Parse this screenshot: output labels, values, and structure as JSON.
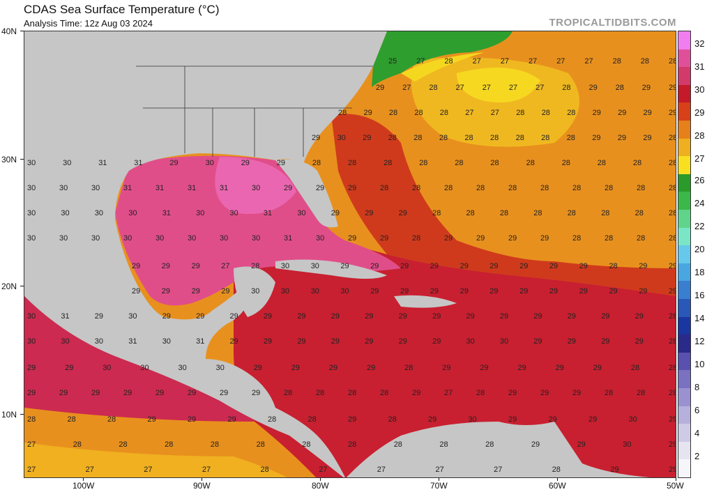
{
  "header": {
    "title": "CDAS Sea Surface Temperature (°C)",
    "analysis_time": "Analysis Time: 12z Aug 03 2024",
    "brand": "TROPICALTIDBITS.COM"
  },
  "axes": {
    "lat_labels": [
      "40N",
      "30N",
      "20N",
      "10N"
    ],
    "lon_labels": [
      "100W",
      "90W",
      "80W",
      "70W",
      "60W",
      "50W"
    ]
  },
  "colorbar": {
    "labels": [
      "32",
      "31",
      "30",
      "29",
      "28",
      "27",
      "26",
      "24",
      "22",
      "20",
      "18",
      "16",
      "14",
      "12",
      "10",
      "8",
      "6",
      "4",
      "2"
    ],
    "colors": [
      "#f07ef0",
      "#e0509a",
      "#d23a6a",
      "#c41a2a",
      "#d8401a",
      "#e6801a",
      "#eeb020",
      "#f8e020",
      "#2a9a2a",
      "#3cb84a",
      "#60d48a",
      "#7ae6c6",
      "#66c8ea",
      "#4aa6e0",
      "#3a7ed0",
      "#2a58b8",
      "#1a36a0",
      "#2a2a8a",
      "#5a50b0",
      "#7a72c0",
      "#9a92d0",
      "#b6b0dc",
      "#cfcbe6",
      "#e6e4f0",
      "#f6f6fa"
    ]
  },
  "map": {
    "land_color": "#c6c6c6",
    "border_color": "#222222",
    "gulf_color": "#e04e8a",
    "caribbean_color": "#c82030",
    "atlantic_color": "#e8901e",
    "warm_core_color": "#f4b81c",
    "cool_color": "#2e9e2e",
    "value_grid": [
      [
        "25",
        "27",
        "28",
        "27",
        "27",
        "27",
        "27",
        "27",
        "28",
        "28",
        "28"
      ],
      [
        "29",
        "27",
        "28",
        "27",
        "27",
        "27",
        "27",
        "28",
        "29",
        "28",
        "29",
        "29"
      ],
      [
        "28",
        "29",
        "28",
        "28",
        "28",
        "27",
        "27",
        "28",
        "28",
        "28",
        "29",
        "29",
        "29",
        "29"
      ],
      [
        "29",
        "30",
        "29",
        "28",
        "28",
        "28",
        "28",
        "28",
        "28",
        "28",
        "28",
        "29",
        "29",
        "29",
        "28"
      ],
      [
        "30",
        "30",
        "31",
        "31",
        "29",
        "30",
        "29",
        "29",
        "28",
        "28",
        "28",
        "28",
        "28",
        "28",
        "28",
        "28",
        "28",
        "28",
        "28"
      ],
      [
        "30",
        "30",
        "30",
        "31",
        "31",
        "31",
        "31",
        "30",
        "29",
        "29",
        "29",
        "28",
        "28",
        "28",
        "28",
        "28",
        "28",
        "28",
        "28",
        "28",
        "28"
      ],
      [
        "30",
        "30",
        "30",
        "30",
        "31",
        "30",
        "30",
        "31",
        "30",
        "29",
        "29",
        "29",
        "28",
        "28",
        "28",
        "28",
        "28",
        "28",
        "28",
        "28"
      ],
      [
        "30",
        "30",
        "30",
        "30",
        "30",
        "30",
        "30",
        "30",
        "31",
        "30",
        "29",
        "29",
        "28",
        "29",
        "29",
        "29",
        "29",
        "28",
        "28",
        "28",
        "28"
      ],
      [
        "29",
        "29",
        "29",
        "27",
        "28",
        "30",
        "30",
        "29",
        "29",
        "29",
        "29",
        "29",
        "29",
        "29",
        "29",
        "29",
        "28",
        "29",
        "29"
      ],
      [
        "29",
        "29",
        "29",
        "29",
        "30",
        "30",
        "30",
        "30",
        "29",
        "29",
        "29",
        "29",
        "29",
        "29",
        "29",
        "29",
        "29",
        "29",
        "29"
      ],
      [
        "30",
        "31",
        "29",
        "30",
        "29",
        "29",
        "29",
        "29",
        "29",
        "29",
        "29",
        "29",
        "29",
        "29",
        "29",
        "29",
        "29",
        "29",
        "29",
        "28"
      ],
      [
        "30",
        "30",
        "30",
        "31",
        "30",
        "31",
        "29",
        "29",
        "29",
        "29",
        "29",
        "29",
        "29",
        "30",
        "30",
        "29",
        "29",
        "29",
        "29",
        "28"
      ],
      [
        "29",
        "29",
        "30",
        "30",
        "30",
        "30",
        "29",
        "29",
        "29",
        "29",
        "28",
        "29",
        "29",
        "29",
        "29",
        "29",
        "28",
        "28"
      ],
      [
        "29",
        "29",
        "29",
        "29",
        "29",
        "29",
        "29",
        "29",
        "28",
        "28",
        "28",
        "28",
        "29",
        "27",
        "28",
        "29",
        "29",
        "29",
        "28",
        "28",
        "28"
      ],
      [
        "28",
        "28",
        "28",
        "29",
        "29",
        "29",
        "28",
        "28",
        "29",
        "28",
        "29",
        "30",
        "29",
        "29",
        "29",
        "30",
        "29"
      ],
      [
        "27",
        "28",
        "28",
        "28",
        "28",
        "28",
        "28",
        "28",
        "28",
        "28",
        "28",
        "29",
        "29",
        "30",
        "29"
      ],
      [
        "27",
        "27",
        "27",
        "27",
        "28",
        "27",
        "27",
        "27",
        "27",
        "28",
        "29",
        "29"
      ]
    ]
  }
}
